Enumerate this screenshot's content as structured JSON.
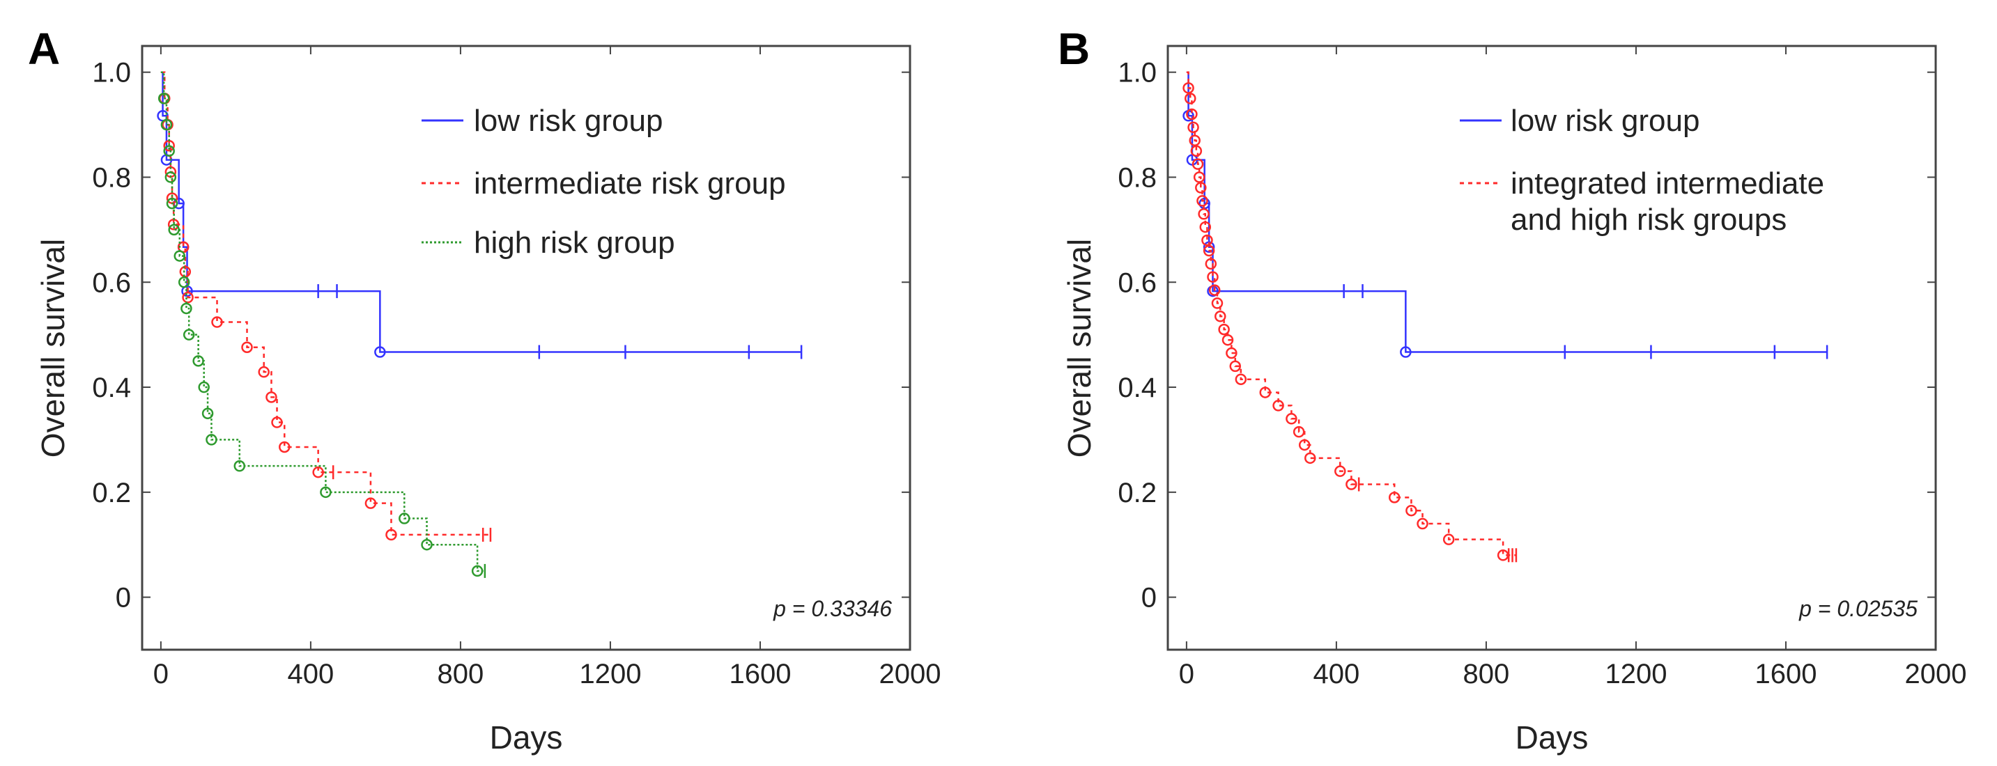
{
  "chart_data": [
    {
      "panel": "A",
      "type": "line",
      "xlabel": "Days",
      "ylabel": "Overall  survival",
      "xlim": [
        -50,
        2000
      ],
      "ylim": [
        -0.1,
        1.05
      ],
      "xticks": [
        "0",
        "400",
        "800",
        "1200",
        "1600",
        "2000"
      ],
      "xtick_values": [
        0,
        400,
        800,
        1200,
        1600,
        2000
      ],
      "yticks": [
        "0",
        "0.2",
        "0.4",
        "0.6",
        "0.8",
        "1.0"
      ],
      "ytick_values": [
        0,
        0.2,
        0.4,
        0.6,
        0.8,
        1.0
      ],
      "annotation": "p = 0.33346",
      "series": [
        {
          "name": "low risk group",
          "color": "#3333ff",
          "dash": "solid",
          "steps": [
            [
              0,
              1.0
            ],
            [
              5,
              0.917
            ],
            [
              15,
              0.833
            ],
            [
              48,
              0.75
            ],
            [
              60,
              0.667
            ],
            [
              70,
              0.583
            ],
            [
              585,
              0.467
            ],
            [
              1710,
              0.467
            ]
          ],
          "events": [
            [
              5,
              0.917
            ],
            [
              15,
              0.833
            ],
            [
              48,
              0.75
            ],
            [
              60,
              0.667
            ],
            [
              70,
              0.583
            ],
            [
              585,
              0.467
            ]
          ],
          "censored": [
            [
              420,
              0.583
            ],
            [
              470,
              0.583
            ],
            [
              1010,
              0.467
            ],
            [
              1240,
              0.467
            ],
            [
              1570,
              0.467
            ],
            [
              1710,
              0.467
            ]
          ]
        },
        {
          "name": "intermediate risk group",
          "color": "#ff2a2a",
          "dash": "6,6",
          "steps": [
            [
              0,
              1.0
            ],
            [
              10,
              0.95
            ],
            [
              18,
              0.9
            ],
            [
              22,
              0.86
            ],
            [
              26,
              0.81
            ],
            [
              30,
              0.76
            ],
            [
              34,
              0.71
            ],
            [
              60,
              0.667
            ],
            [
              65,
              0.62
            ],
            [
              72,
              0.571
            ],
            [
              150,
              0.524
            ],
            [
              230,
              0.476
            ],
            [
              275,
              0.429
            ],
            [
              295,
              0.381
            ],
            [
              310,
              0.333
            ],
            [
              330,
              0.286
            ],
            [
              420,
              0.238
            ],
            [
              560,
              0.179
            ],
            [
              615,
              0.119
            ],
            [
              880,
              0.119
            ]
          ],
          "events": [
            [
              10,
              0.95
            ],
            [
              18,
              0.9
            ],
            [
              22,
              0.86
            ],
            [
              26,
              0.81
            ],
            [
              30,
              0.76
            ],
            [
              34,
              0.71
            ],
            [
              60,
              0.667
            ],
            [
              65,
              0.62
            ],
            [
              72,
              0.571
            ],
            [
              150,
              0.524
            ],
            [
              230,
              0.476
            ],
            [
              275,
              0.429
            ],
            [
              295,
              0.381
            ],
            [
              310,
              0.333
            ],
            [
              330,
              0.286
            ],
            [
              420,
              0.238
            ],
            [
              560,
              0.179
            ],
            [
              615,
              0.119
            ]
          ],
          "censored": [
            [
              460,
              0.238
            ],
            [
              860,
              0.119
            ],
            [
              880,
              0.119
            ]
          ]
        },
        {
          "name": "high risk group",
          "color": "#2e9a2e",
          "dash": "3,3",
          "steps": [
            [
              0,
              1.0
            ],
            [
              8,
              0.95
            ],
            [
              15,
              0.9
            ],
            [
              22,
              0.85
            ],
            [
              26,
              0.8
            ],
            [
              30,
              0.75
            ],
            [
              35,
              0.7
            ],
            [
              50,
              0.65
            ],
            [
              62,
              0.6
            ],
            [
              68,
              0.55
            ],
            [
              75,
              0.5
            ],
            [
              100,
              0.45
            ],
            [
              115,
              0.4
            ],
            [
              125,
              0.35
            ],
            [
              135,
              0.3
            ],
            [
              210,
              0.25
            ],
            [
              440,
              0.2
            ],
            [
              650,
              0.15
            ],
            [
              710,
              0.1
            ],
            [
              845,
              0.05
            ],
            [
              865,
              0.05
            ]
          ],
          "events": [
            [
              8,
              0.95
            ],
            [
              15,
              0.9
            ],
            [
              22,
              0.85
            ],
            [
              26,
              0.8
            ],
            [
              30,
              0.75
            ],
            [
              35,
              0.7
            ],
            [
              50,
              0.65
            ],
            [
              62,
              0.6
            ],
            [
              68,
              0.55
            ],
            [
              75,
              0.5
            ],
            [
              100,
              0.45
            ],
            [
              115,
              0.4
            ],
            [
              125,
              0.35
            ],
            [
              135,
              0.3
            ],
            [
              210,
              0.25
            ],
            [
              440,
              0.2
            ],
            [
              650,
              0.15
            ],
            [
              710,
              0.1
            ],
            [
              845,
              0.05
            ]
          ],
          "censored": [
            [
              865,
              0.05
            ]
          ]
        }
      ]
    },
    {
      "panel": "B",
      "type": "line",
      "xlabel": "Days",
      "ylabel": "Overall survival",
      "xlim": [
        -50,
        2000
      ],
      "ylim": [
        -0.1,
        1.05
      ],
      "xticks": [
        "0",
        "400",
        "800",
        "1200",
        "1600",
        "2000"
      ],
      "xtick_values": [
        0,
        400,
        800,
        1200,
        1600,
        2000
      ],
      "yticks": [
        "0",
        "0.2",
        "0.4",
        "0.6",
        "0.8",
        "1.0"
      ],
      "ytick_values": [
        0,
        0.2,
        0.4,
        0.6,
        0.8,
        1.0
      ],
      "annotation": "p = 0.02535",
      "series": [
        {
          "name": "low risk group",
          "color": "#3333ff",
          "dash": "solid",
          "steps": [
            [
              0,
              1.0
            ],
            [
              5,
              0.917
            ],
            [
              15,
              0.833
            ],
            [
              48,
              0.75
            ],
            [
              60,
              0.667
            ],
            [
              70,
              0.583
            ],
            [
              585,
              0.467
            ],
            [
              1710,
              0.467
            ]
          ],
          "events": [
            [
              5,
              0.917
            ],
            [
              15,
              0.833
            ],
            [
              48,
              0.75
            ],
            [
              60,
              0.667
            ],
            [
              70,
              0.583
            ],
            [
              585,
              0.467
            ]
          ],
          "censored": [
            [
              420,
              0.583
            ],
            [
              470,
              0.583
            ],
            [
              1010,
              0.467
            ],
            [
              1240,
              0.467
            ],
            [
              1570,
              0.467
            ],
            [
              1710,
              0.467
            ]
          ]
        },
        {
          "name": "integrated intermediate\nand high risk groups",
          "color": "#ff2a2a",
          "dash": "6,6",
          "steps": [
            [
              0,
              1.0
            ],
            [
              5,
              0.97
            ],
            [
              10,
              0.95
            ],
            [
              14,
              0.92
            ],
            [
              18,
              0.895
            ],
            [
              22,
              0.87
            ],
            [
              26,
              0.85
            ],
            [
              30,
              0.825
            ],
            [
              34,
              0.8
            ],
            [
              38,
              0.78
            ],
            [
              42,
              0.755
            ],
            [
              46,
              0.73
            ],
            [
              50,
              0.705
            ],
            [
              55,
              0.68
            ],
            [
              60,
              0.66
            ],
            [
              65,
              0.635
            ],
            [
              70,
              0.61
            ],
            [
              75,
              0.585
            ],
            [
              82,
              0.56
            ],
            [
              90,
              0.535
            ],
            [
              100,
              0.51
            ],
            [
              110,
              0.49
            ],
            [
              120,
              0.465
            ],
            [
              130,
              0.44
            ],
            [
              145,
              0.415
            ],
            [
              210,
              0.39
            ],
            [
              245,
              0.365
            ],
            [
              280,
              0.34
            ],
            [
              300,
              0.315
            ],
            [
              315,
              0.29
            ],
            [
              330,
              0.265
            ],
            [
              410,
              0.24
            ],
            [
              440,
              0.215
            ],
            [
              555,
              0.19
            ],
            [
              600,
              0.165
            ],
            [
              630,
              0.14
            ],
            [
              700,
              0.11
            ],
            [
              845,
              0.08
            ],
            [
              880,
              0.08
            ]
          ],
          "events": [
            [
              5,
              0.97
            ],
            [
              10,
              0.95
            ],
            [
              14,
              0.92
            ],
            [
              18,
              0.895
            ],
            [
              22,
              0.87
            ],
            [
              26,
              0.85
            ],
            [
              30,
              0.825
            ],
            [
              34,
              0.8
            ],
            [
              38,
              0.78
            ],
            [
              42,
              0.755
            ],
            [
              46,
              0.73
            ],
            [
              50,
              0.705
            ],
            [
              55,
              0.68
            ],
            [
              60,
              0.66
            ],
            [
              65,
              0.635
            ],
            [
              70,
              0.61
            ],
            [
              75,
              0.585
            ],
            [
              82,
              0.56
            ],
            [
              90,
              0.535
            ],
            [
              100,
              0.51
            ],
            [
              110,
              0.49
            ],
            [
              120,
              0.465
            ],
            [
              130,
              0.44
            ],
            [
              145,
              0.415
            ],
            [
              210,
              0.39
            ],
            [
              245,
              0.365
            ],
            [
              280,
              0.34
            ],
            [
              300,
              0.315
            ],
            [
              315,
              0.29
            ],
            [
              330,
              0.265
            ],
            [
              410,
              0.24
            ],
            [
              440,
              0.215
            ],
            [
              555,
              0.19
            ],
            [
              600,
              0.165
            ],
            [
              630,
              0.14
            ],
            [
              700,
              0.11
            ],
            [
              845,
              0.08
            ]
          ],
          "censored": [
            [
              460,
              0.215
            ],
            [
              860,
              0.08
            ],
            [
              870,
              0.08
            ],
            [
              880,
              0.08
            ]
          ]
        }
      ]
    }
  ]
}
